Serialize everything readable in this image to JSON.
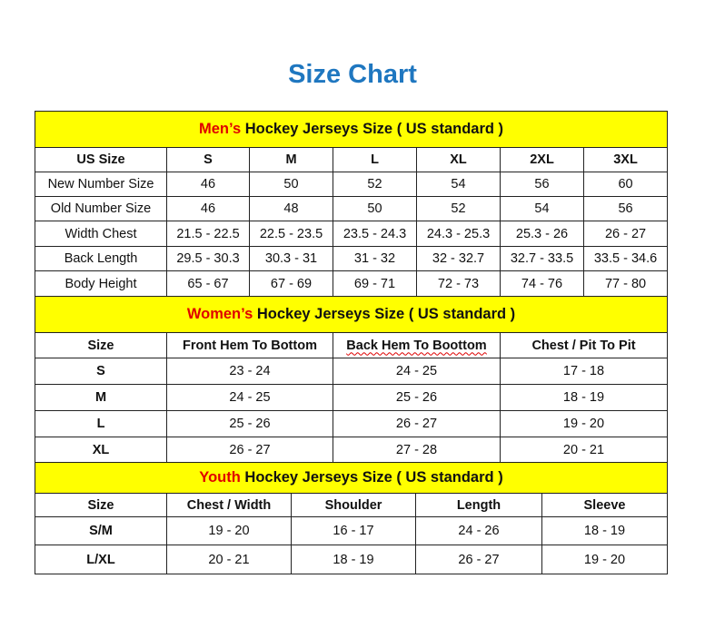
{
  "title": "Size Chart",
  "colors": {
    "title": "#1f77c0",
    "header_bg": "#ffff00",
    "highlight": "#e00000"
  },
  "men": {
    "header_highlight": "Men’s",
    "header_rest": " Hockey Jerseys Size ( US standard )",
    "columns": [
      "US Size",
      "S",
      "M",
      "L",
      "XL",
      "2XL",
      "3XL"
    ],
    "rows": [
      [
        "New Number Size",
        "46",
        "50",
        "52",
        "54",
        "56",
        "60"
      ],
      [
        "Old Number Size",
        "46",
        "48",
        "50",
        "52",
        "54",
        "56"
      ],
      [
        "Width Chest",
        "21.5 - 22.5",
        "22.5 - 23.5",
        "23.5 - 24.3",
        "24.3 - 25.3",
        "25.3 - 26",
        "26 - 27"
      ],
      [
        "Back Length",
        "29.5 - 30.3",
        "30.3 - 31",
        "31 - 32",
        "32 - 32.7",
        "32.7 - 33.5",
        "33.5 - 34.6"
      ],
      [
        "Body Height",
        "65 - 67",
        "67 - 69",
        "69 - 71",
        "72 - 73",
        "74 - 76",
        "77 - 80"
      ]
    ]
  },
  "women": {
    "header_highlight": "Women’s",
    "header_rest": " Hockey Jerseys Size ( US standard )",
    "columns": [
      "Size",
      "Front Hem To Bottom",
      "Back Hem To Boottom",
      "Chest / Pit To Pit"
    ],
    "rows": [
      [
        "S",
        "23 - 24",
        "24 - 25",
        "17 - 18"
      ],
      [
        "M",
        "24 - 25",
        "25 - 26",
        "18 - 19"
      ],
      [
        "L",
        "25 - 26",
        "26 - 27",
        "19 - 20"
      ],
      [
        "XL",
        "26 - 27",
        "27 - 28",
        "20 - 21"
      ]
    ]
  },
  "youth": {
    "header_highlight": "Youth",
    "header_rest": " Hockey Jerseys Size ( US standard )",
    "columns": [
      "Size",
      "Chest / Width",
      "Shoulder",
      "Length",
      "Sleeve"
    ],
    "rows": [
      [
        "S/M",
        "19 - 20",
        "16 - 17",
        "24 - 26",
        "18 - 19"
      ],
      [
        "L/XL",
        "20 - 21",
        "18 - 19",
        "26 - 27",
        "19 - 20"
      ]
    ]
  }
}
